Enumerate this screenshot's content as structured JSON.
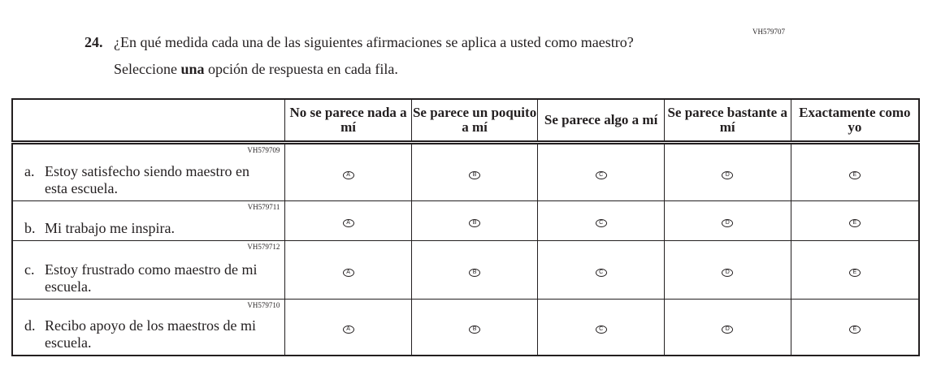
{
  "question": {
    "id": "VH579707",
    "number": "24.",
    "text": "¿En qué medida cada una de las siguientes afirmaciones se aplica a usted como maestro?",
    "instruction_pre": "Seleccione ",
    "instruction_bold": "una",
    "instruction_post": " opción de respuesta en cada fila."
  },
  "columns": [
    "No se parece nada a mí",
    "Se parece un poquito a mí",
    "Se parece algo a mí",
    "Se parece bastante a mí",
    "Exactamente como yo"
  ],
  "options": [
    "A",
    "B",
    "C",
    "D",
    "E"
  ],
  "rows": [
    {
      "code": "VH579709",
      "label": "a.",
      "text": "Estoy satisfecho siendo maestro en esta escuela."
    },
    {
      "code": "VH579711",
      "label": "b.",
      "text": "Mi trabajo me inspira."
    },
    {
      "code": "VH579712",
      "label": "c.",
      "text": "Estoy frustrado como maestro de mi escuela."
    },
    {
      "code": "VH579710",
      "label": "d.",
      "text": "Recibo apoyo de los maestros de mi escuela."
    }
  ]
}
